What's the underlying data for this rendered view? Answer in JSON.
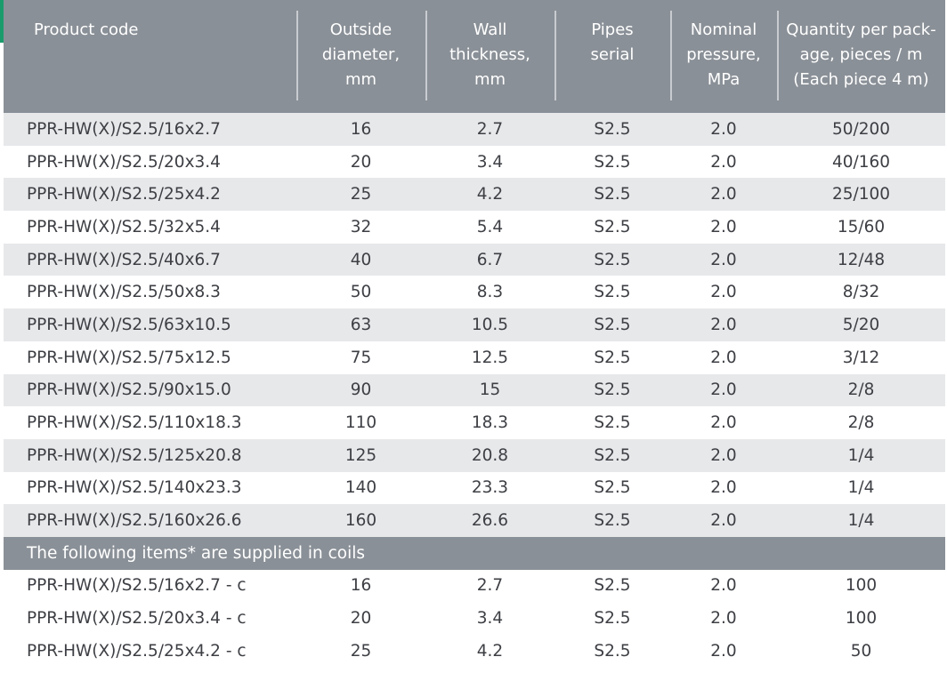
{
  "header": {
    "product_code": "Product code",
    "outside_diameter": [
      "Outside",
      "diameter,",
      "mm"
    ],
    "wall_thickness": [
      "Wall",
      "thickness,",
      "mm"
    ],
    "pipes_serial": [
      "Pipes",
      "serial"
    ],
    "nominal_pressure": [
      "Nominal",
      "pressure,",
      "MPa"
    ],
    "quantity": [
      "Quantity per pack-",
      "age, pieces / m",
      "(Each piece 4 m)"
    ]
  },
  "rows": [
    {
      "code": "PPR-HW(X)/S2.5/16x2.7",
      "diameter": "16",
      "thickness": "2.7",
      "serial": "S2.5",
      "pressure": "2.0",
      "quantity": "50/200"
    },
    {
      "code": "PPR-HW(X)/S2.5/20x3.4",
      "diameter": "20",
      "thickness": "3.4",
      "serial": "S2.5",
      "pressure": "2.0",
      "quantity": "40/160"
    },
    {
      "code": "PPR-HW(X)/S2.5/25x4.2",
      "diameter": "25",
      "thickness": "4.2",
      "serial": "S2.5",
      "pressure": "2.0",
      "quantity": "25/100"
    },
    {
      "code": "PPR-HW(X)/S2.5/32x5.4",
      "diameter": "32",
      "thickness": "5.4",
      "serial": "S2.5",
      "pressure": "2.0",
      "quantity": "15/60"
    },
    {
      "code": "PPR-HW(X)/S2.5/40x6.7",
      "diameter": "40",
      "thickness": "6.7",
      "serial": "S2.5",
      "pressure": "2.0",
      "quantity": "12/48"
    },
    {
      "code": "PPR-HW(X)/S2.5/50x8.3",
      "diameter": "50",
      "thickness": "8.3",
      "serial": "S2.5",
      "pressure": "2.0",
      "quantity": "8/32"
    },
    {
      "code": "PPR-HW(X)/S2.5/63x10.5",
      "diameter": "63",
      "thickness": "10.5",
      "serial": "S2.5",
      "pressure": "2.0",
      "quantity": "5/20"
    },
    {
      "code": "PPR-HW(X)/S2.5/75x12.5",
      "diameter": "75",
      "thickness": "12.5",
      "serial": "S2.5",
      "pressure": "2.0",
      "quantity": "3/12"
    },
    {
      "code": "PPR-HW(X)/S2.5/90x15.0",
      "diameter": "90",
      "thickness": "15",
      "serial": "S2.5",
      "pressure": "2.0",
      "quantity": "2/8"
    },
    {
      "code": "PPR-HW(X)/S2.5/110x18.3",
      "diameter": "110",
      "thickness": "18.3",
      "serial": "S2.5",
      "pressure": "2.0",
      "quantity": "2/8"
    },
    {
      "code": "PPR-HW(X)/S2.5/125x20.8",
      "diameter": "125",
      "thickness": "20.8",
      "serial": "S2.5",
      "pressure": "2.0",
      "quantity": "1/4"
    },
    {
      "code": "PPR-HW(X)/S2.5/140x23.3",
      "diameter": "140",
      "thickness": "23.3",
      "serial": "S2.5",
      "pressure": "2.0",
      "quantity": "1/4"
    },
    {
      "code": "PPR-HW(X)/S2.5/160x26.6",
      "diameter": "160",
      "thickness": "26.6",
      "serial": "S2.5",
      "pressure": "2.0",
      "quantity": "1/4"
    }
  ],
  "coil_section_label": "The following items* are supplied in coils",
  "coil_rows": [
    {
      "code": "PPR-HW(X)/S2.5/16x2.7 - c",
      "diameter": "16",
      "thickness": "2.7",
      "serial": "S2.5",
      "pressure": "2.0",
      "quantity": "100"
    },
    {
      "code": "PPR-HW(X)/S2.5/20x3.4 - c",
      "diameter": "20",
      "thickness": "3.4",
      "serial": "S2.5",
      "pressure": "2.0",
      "quantity": "100"
    },
    {
      "code": "PPR-HW(X)/S2.5/25x4.2 - c",
      "diameter": "25",
      "thickness": "4.2",
      "serial": "S2.5",
      "pressure": "2.0",
      "quantity": "50"
    }
  ],
  "colors": {
    "header_bg": "#8a9097",
    "stripe_bg": "#e7e8ea",
    "text": "#3d3f44",
    "accent": "#1a9b6c"
  }
}
